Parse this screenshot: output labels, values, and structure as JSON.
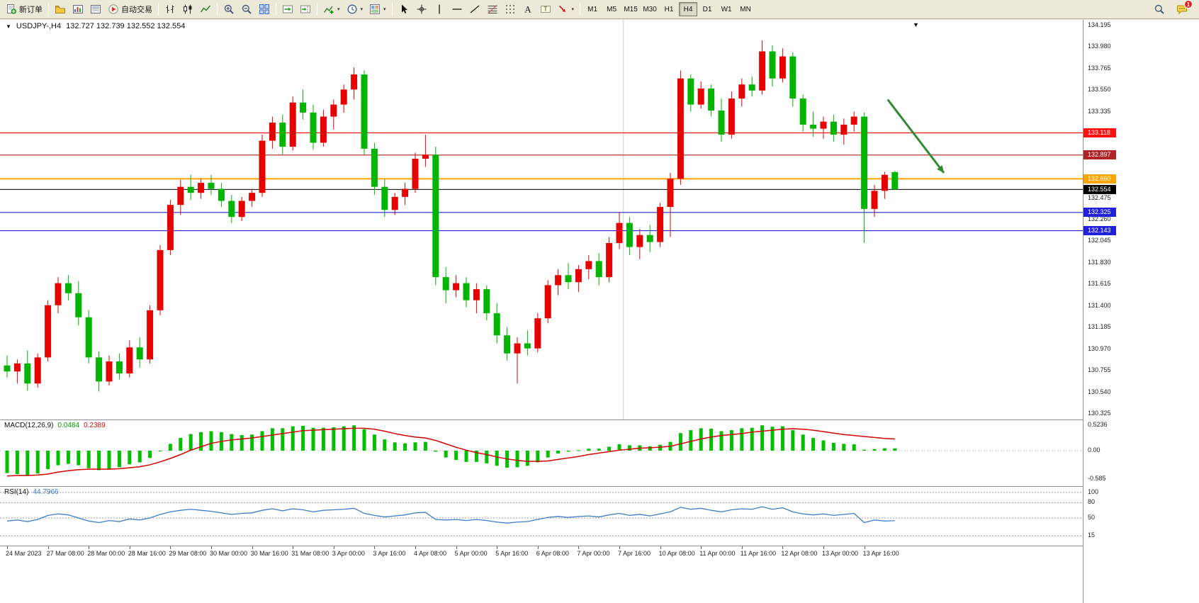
{
  "toolbar": {
    "items": [
      {
        "type": "button",
        "name": "new-order",
        "icon": "new-order-icon",
        "label": "新订单"
      },
      {
        "type": "separator"
      },
      {
        "type": "button",
        "name": "profiles",
        "icon": "profiles-icon"
      },
      {
        "type": "button",
        "name": "market-watch",
        "icon": "market-watch-icon"
      },
      {
        "type": "button",
        "name": "data-window",
        "icon": "data-window-icon"
      },
      {
        "type": "button",
        "name": "autotrading",
        "icon": "autotrading-icon",
        "label": "自动交易"
      },
      {
        "type": "separator"
      },
      {
        "type": "button",
        "name": "bar-chart",
        "icon": "bar-chart-icon"
      },
      {
        "type": "button",
        "name": "candlestick-chart",
        "icon": "candlestick-icon"
      },
      {
        "type": "button",
        "name": "line-chart",
        "icon": "line-chart-icon"
      },
      {
        "type": "separator"
      },
      {
        "type": "button",
        "name": "zoom-in",
        "icon": "zoom-in-icon"
      },
      {
        "type": "button",
        "name": "zoom-out",
        "icon": "zoom-out-icon"
      },
      {
        "type": "button",
        "name": "tile-windows",
        "icon": "tile-windows-icon"
      },
      {
        "type": "separator"
      },
      {
        "type": "button",
        "name": "auto-scroll",
        "icon": "auto-scroll-icon"
      },
      {
        "type": "button",
        "name": "chart-shift",
        "icon": "chart-shift-icon"
      },
      {
        "type": "separator"
      },
      {
        "type": "button",
        "name": "indicators",
        "icon": "indicators-icon",
        "dropdown": true
      },
      {
        "type": "button",
        "name": "periods",
        "icon": "periods-icon",
        "dropdown": true
      },
      {
        "type": "button",
        "name": "templates",
        "icon": "templates-icon",
        "dropdown": true
      },
      {
        "type": "separator"
      },
      {
        "type": "button",
        "name": "cursor",
        "icon": "cursor-icon"
      },
      {
        "type": "button",
        "name": "crosshair",
        "icon": "crosshair-icon"
      },
      {
        "type": "button",
        "name": "vertical-line",
        "icon": "vertical-line-icon"
      },
      {
        "type": "button",
        "name": "horizontal-line",
        "icon": "horizontal-line-icon"
      },
      {
        "type": "button",
        "name": "trendline",
        "icon": "trendline-icon"
      },
      {
        "type": "button",
        "name": "fibonacci",
        "icon": "fibonacci-icon"
      },
      {
        "type": "button",
        "name": "shapes",
        "icon": "shapes-icon"
      },
      {
        "type": "button",
        "name": "text",
        "icon": "text-icon"
      },
      {
        "type": "button",
        "name": "text-label",
        "icon": "text-label-icon"
      },
      {
        "type": "button",
        "name": "arrows",
        "icon": "arrows-icon",
        "dropdown": true
      },
      {
        "type": "separator"
      },
      {
        "type": "timeframes"
      }
    ],
    "timeframes": [
      "M1",
      "M5",
      "M15",
      "M30",
      "H1",
      "H4",
      "D1",
      "W1",
      "MN"
    ],
    "active_timeframe": "H4",
    "right_items": [
      {
        "type": "button",
        "name": "search",
        "icon": "search-icon"
      },
      {
        "type": "button",
        "name": "notifications",
        "icon": "chat-icon",
        "badge": "1"
      }
    ]
  },
  "chart": {
    "symbol_period": "USDJPY-,H4",
    "open": "132.727",
    "high": "132.739",
    "low": "132.552",
    "close": "132.554",
    "ohlc_text": "132.727 132.739 132.552 132.554"
  },
  "chart_data": {
    "type": "candlestick",
    "symbol": "USDJPY-",
    "timeframe": "H4",
    "price_range": {
      "max": 134.195,
      "min": 130.325
    },
    "colors": {
      "bull": "#e60000",
      "bear": "#00b400",
      "macd_histogram": "#00c000",
      "macd_signal": "#d40000",
      "rsi": "#3e7ec8"
    },
    "candles": [
      [
        130.8,
        130.9,
        130.68,
        130.74
      ],
      [
        130.74,
        130.86,
        130.62,
        130.82
      ],
      [
        130.82,
        130.95,
        130.55,
        130.62
      ],
      [
        130.62,
        130.92,
        130.58,
        130.88
      ],
      [
        130.88,
        131.45,
        130.84,
        131.4
      ],
      [
        131.4,
        131.68,
        131.32,
        131.62
      ],
      [
        131.62,
        131.7,
        131.45,
        131.52
      ],
      [
        131.52,
        131.64,
        131.2,
        131.28
      ],
      [
        131.28,
        131.35,
        130.82,
        130.88
      ],
      [
        130.88,
        130.94,
        130.54,
        130.64
      ],
      [
        130.64,
        130.9,
        130.6,
        130.84
      ],
      [
        130.84,
        130.92,
        130.66,
        130.72
      ],
      [
        130.72,
        131.05,
        130.68,
        130.98
      ],
      [
        130.98,
        131.08,
        130.78,
        130.86
      ],
      [
        130.86,
        131.4,
        130.82,
        131.35
      ],
      [
        131.35,
        132.0,
        131.3,
        131.95
      ],
      [
        131.95,
        132.45,
        131.9,
        132.4
      ],
      [
        132.4,
        132.65,
        132.3,
        132.58
      ],
      [
        132.58,
        132.7,
        132.45,
        132.52
      ],
      [
        132.52,
        132.66,
        132.46,
        132.62
      ],
      [
        132.62,
        132.7,
        132.5,
        132.56
      ],
      [
        132.56,
        132.62,
        132.38,
        132.44
      ],
      [
        132.44,
        132.5,
        132.22,
        132.28
      ],
      [
        132.28,
        132.48,
        132.24,
        132.44
      ],
      [
        132.44,
        132.56,
        132.38,
        132.52
      ],
      [
        132.52,
        133.1,
        132.48,
        133.04
      ],
      [
        133.04,
        133.28,
        132.96,
        133.22
      ],
      [
        133.22,
        133.3,
        132.9,
        132.98
      ],
      [
        132.98,
        133.48,
        132.94,
        133.42
      ],
      [
        133.42,
        133.55,
        133.25,
        133.32
      ],
      [
        133.32,
        133.4,
        132.95,
        133.02
      ],
      [
        133.02,
        133.35,
        132.98,
        133.28
      ],
      [
        133.28,
        133.45,
        133.15,
        133.4
      ],
      [
        133.4,
        133.6,
        133.32,
        133.55
      ],
      [
        133.55,
        133.77,
        133.45,
        133.7
      ],
      [
        133.7,
        133.74,
        132.9,
        132.96
      ],
      [
        132.96,
        133.02,
        132.5,
        132.58
      ],
      [
        132.58,
        132.66,
        132.28,
        132.35
      ],
      [
        132.35,
        132.52,
        132.3,
        132.48
      ],
      [
        132.48,
        132.62,
        132.4,
        132.56
      ],
      [
        132.56,
        132.92,
        132.52,
        132.86
      ],
      [
        132.86,
        133.1,
        132.78,
        132.9
      ],
      [
        132.9,
        132.98,
        131.6,
        131.68
      ],
      [
        131.68,
        131.78,
        131.42,
        131.55
      ],
      [
        131.55,
        131.7,
        131.48,
        131.62
      ],
      [
        131.62,
        131.68,
        131.38,
        131.45
      ],
      [
        131.45,
        131.62,
        131.32,
        131.56
      ],
      [
        131.56,
        131.6,
        131.25,
        131.32
      ],
      [
        131.32,
        131.42,
        131.02,
        131.1
      ],
      [
        131.1,
        131.18,
        130.85,
        130.92
      ],
      [
        130.92,
        131.08,
        130.62,
        131.02
      ],
      [
        131.02,
        131.15,
        130.9,
        130.97
      ],
      [
        130.97,
        131.32,
        130.93,
        131.27
      ],
      [
        131.27,
        131.65,
        131.22,
        131.6
      ],
      [
        131.6,
        131.76,
        131.5,
        131.7
      ],
      [
        131.7,
        131.82,
        131.56,
        131.63
      ],
      [
        131.63,
        131.8,
        131.53,
        131.76
      ],
      [
        131.76,
        131.9,
        131.66,
        131.84
      ],
      [
        131.84,
        131.92,
        131.6,
        131.68
      ],
      [
        131.68,
        132.08,
        131.63,
        132.02
      ],
      [
        132.02,
        132.33,
        131.96,
        132.22
      ],
      [
        132.22,
        132.28,
        131.9,
        131.98
      ],
      [
        131.98,
        132.16,
        131.86,
        132.1
      ],
      [
        132.1,
        132.2,
        131.93,
        132.03
      ],
      [
        132.03,
        132.42,
        131.98,
        132.38
      ],
      [
        132.38,
        132.72,
        132.08,
        132.66
      ],
      [
        132.66,
        133.74,
        132.6,
        133.66
      ],
      [
        133.66,
        133.7,
        133.33,
        133.4
      ],
      [
        133.4,
        133.63,
        133.36,
        133.56
      ],
      [
        133.56,
        133.6,
        133.28,
        133.34
      ],
      [
        133.34,
        133.46,
        133.03,
        133.1
      ],
      [
        133.1,
        133.53,
        133.06,
        133.46
      ],
      [
        133.46,
        133.66,
        133.38,
        133.6
      ],
      [
        133.6,
        133.68,
        133.48,
        133.54
      ],
      [
        133.54,
        134.04,
        133.5,
        133.93
      ],
      [
        133.93,
        133.99,
        133.58,
        133.66
      ],
      [
        133.66,
        133.96,
        133.62,
        133.88
      ],
      [
        133.88,
        133.92,
        133.38,
        133.46
      ],
      [
        133.46,
        133.5,
        133.13,
        133.2
      ],
      [
        133.2,
        133.33,
        133.08,
        133.16
      ],
      [
        133.16,
        133.28,
        133.06,
        133.23
      ],
      [
        133.23,
        133.3,
        133.03,
        133.1
      ],
      [
        133.1,
        133.26,
        133.0,
        133.2
      ],
      [
        133.2,
        133.33,
        133.13,
        133.28
      ],
      [
        133.28,
        133.32,
        132.02,
        132.36
      ],
      [
        132.36,
        132.6,
        132.28,
        132.54
      ],
      [
        132.54,
        132.73,
        132.46,
        132.7
      ],
      [
        132.727,
        132.739,
        132.552,
        132.554
      ]
    ],
    "hlines": [
      {
        "price": 133.118,
        "label": "133.118",
        "color": "#ff1111",
        "width": 1.2
      },
      {
        "price": 132.897,
        "label": "132.897",
        "color": "#b22222",
        "width": 1.2
      },
      {
        "price": 132.66,
        "label": "132.660",
        "color": "#ffa500",
        "width": 2
      },
      {
        "price": 132.554,
        "label": "132.554",
        "color": "#000000",
        "width": 1
      },
      {
        "price": 132.325,
        "label": "132.325",
        "color": "#2020dd",
        "width": 1.2
      },
      {
        "price": 132.143,
        "label": "132.143",
        "color": "#2020dd",
        "width": 1.2
      }
    ],
    "vlines": [
      {
        "index": 60.4,
        "color": "#cccccc"
      }
    ],
    "arrow": {
      "from_index": 86.3,
      "from_price": 133.45,
      "to_index": 91.8,
      "to_price": 132.72,
      "color": "#2e8b2e"
    },
    "price_ticks": [
      "134.195",
      "133.980",
      "133.765",
      "133.550",
      "133.335",
      "132.475",
      "132.260",
      "132.045",
      "131.830",
      "131.615",
      "131.400",
      "131.185",
      "130.970",
      "130.755",
      "130.540",
      "130.325"
    ],
    "time_ticks": [
      "24 Mar 2023",
      "27 Mar 08:00",
      "28 Mar 00:00",
      "28 Mar 16:00",
      "29 Mar 08:00",
      "30 Mar 00:00",
      "30 Mar 16:00",
      "31 Mar 08:00",
      "3 Apr 00:00",
      "3 Apr 16:00",
      "4 Apr 08:00",
      "5 Apr 00:00",
      "5 Apr 16:00",
      "6 Apr 08:00",
      "7 Apr 00:00",
      "7 Apr 16:00",
      "10 Apr 08:00",
      "11 Apr 00:00",
      "11 Apr 16:00",
      "12 Apr 08:00",
      "13 Apr 00:00",
      "13 Apr 16:00"
    ],
    "macd": {
      "title": "MACD(12,26,9)",
      "value_main": "0.0484",
      "value_signal": "0.2389",
      "scale_ticks": [
        "0.5236",
        "0.00",
        "-0.585"
      ],
      "histogram": [
        -0.46,
        -0.48,
        -0.5,
        -0.47,
        -0.38,
        -0.3,
        -0.27,
        -0.3,
        -0.36,
        -0.4,
        -0.37,
        -0.34,
        -0.28,
        -0.24,
        -0.15,
        0.0,
        0.14,
        0.26,
        0.34,
        0.38,
        0.4,
        0.38,
        0.34,
        0.32,
        0.33,
        0.4,
        0.46,
        0.46,
        0.5,
        0.51,
        0.47,
        0.47,
        0.48,
        0.5,
        0.52,
        0.44,
        0.33,
        0.23,
        0.17,
        0.15,
        0.17,
        0.18,
        -0.02,
        -0.14,
        -0.19,
        -0.23,
        -0.23,
        -0.26,
        -0.31,
        -0.35,
        -0.34,
        -0.31,
        -0.24,
        -0.14,
        -0.06,
        -0.02,
        0.01,
        0.04,
        0.04,
        0.08,
        0.13,
        0.11,
        0.11,
        0.09,
        0.12,
        0.18,
        0.36,
        0.42,
        0.46,
        0.45,
        0.4,
        0.42,
        0.46,
        0.47,
        0.52,
        0.49,
        0.5,
        0.42,
        0.33,
        0.26,
        0.21,
        0.16,
        0.14,
        0.13,
        0.02,
        0.03,
        0.05,
        0.048
      ],
      "signal": [
        -0.52,
        -0.51,
        -0.51,
        -0.5,
        -0.48,
        -0.44,
        -0.41,
        -0.39,
        -0.38,
        -0.38,
        -0.38,
        -0.37,
        -0.35,
        -0.33,
        -0.29,
        -0.23,
        -0.16,
        -0.08,
        0.01,
        0.08,
        0.15,
        0.19,
        0.22,
        0.24,
        0.26,
        0.29,
        0.32,
        0.35,
        0.38,
        0.41,
        0.42,
        0.43,
        0.44,
        0.45,
        0.46,
        0.46,
        0.44,
        0.4,
        0.35,
        0.31,
        0.28,
        0.26,
        0.21,
        0.14,
        0.07,
        0.01,
        -0.04,
        -0.08,
        -0.13,
        -0.17,
        -0.2,
        -0.22,
        -0.22,
        -0.21,
        -0.18,
        -0.15,
        -0.12,
        -0.08,
        -0.05,
        -0.02,
        0.01,
        0.03,
        0.05,
        0.06,
        0.07,
        0.09,
        0.14,
        0.19,
        0.24,
        0.28,
        0.31,
        0.33,
        0.35,
        0.38,
        0.4,
        0.42,
        0.44,
        0.45,
        0.44,
        0.42,
        0.39,
        0.36,
        0.33,
        0.31,
        0.29,
        0.27,
        0.25,
        0.239
      ]
    },
    "rsi": {
      "title": "RSI(14)",
      "value": "44.7966",
      "levels": [
        100,
        80,
        50,
        15
      ],
      "values": [
        44,
        46,
        43,
        47,
        55,
        58,
        56,
        50,
        44,
        41,
        45,
        43,
        48,
        46,
        50,
        57,
        62,
        65,
        67,
        65,
        63,
        60,
        57,
        59,
        60,
        65,
        68,
        64,
        68,
        66,
        62,
        65,
        66,
        67,
        69,
        59,
        55,
        52,
        54,
        56,
        60,
        61,
        47,
        46,
        47,
        45,
        47,
        45,
        42,
        40,
        42,
        43,
        47,
        51,
        53,
        51,
        53,
        54,
        52,
        56,
        59,
        55,
        57,
        54,
        58,
        62,
        71,
        67,
        69,
        65,
        62,
        66,
        68,
        67,
        72,
        67,
        70,
        62,
        58,
        56,
        58,
        55,
        57,
        59,
        41,
        46,
        44,
        44.8
      ]
    }
  }
}
